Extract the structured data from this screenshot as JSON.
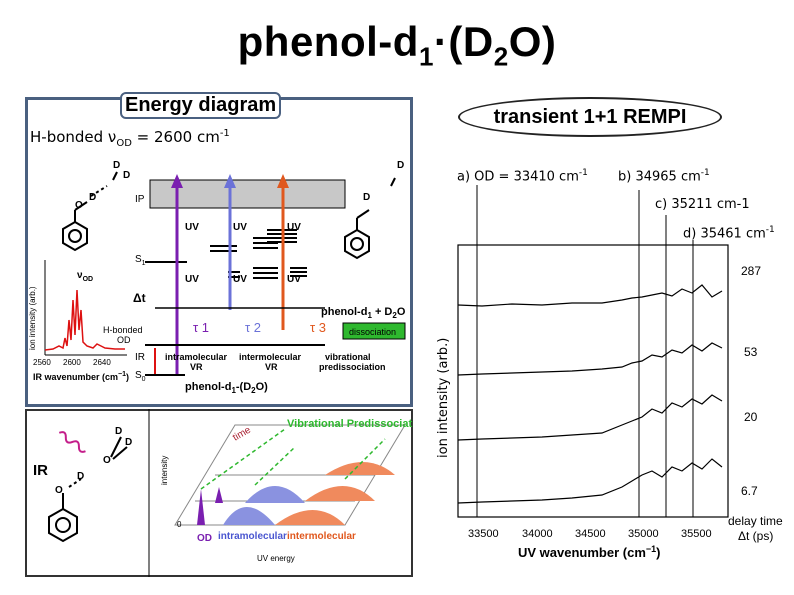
{
  "title": {
    "main": "phenol-d",
    "sub1": "1",
    "dot": "·(D",
    "sub2": "2",
    "end": "O)"
  },
  "energy_diagram": {
    "label": "Energy diagram",
    "hbonded_prefix": "H-bonded ν",
    "hbonded_sub": "OD",
    "hbonded_value": " = 2600 cm",
    "hbonded_sup": "-1",
    "levels": {
      "ip": "IP",
      "s1": "S",
      "s1_sub": "1",
      "s0": "S",
      "s0_sub": "0",
      "ir": "IR"
    },
    "uv": "UV",
    "tau1": "τ 1",
    "tau2": "τ 2",
    "tau3": "τ 3",
    "delta_t": "Δt",
    "vod": "ν",
    "vod_sub": "OD",
    "hbonded_od": "H-bonded",
    "od": "OD",
    "product": "phenol-d",
    "product_sub": "1",
    "product_end": " + D",
    "product_sub2": "2",
    "product_end2": "O",
    "dissociation": "dissociation",
    "intra_vr": "intramolecular",
    "inter_vr": "intermolecular",
    "vr": "VR",
    "vib_predis": "vibrational",
    "vib_predis2": "predissociation",
    "complex": "phenol-d",
    "complex_sub": "1",
    "complex_end": "-(D",
    "complex_sub2": "2",
    "complex_end2": "O)",
    "ir_spec_ylabel": "ion intensity (arb.)",
    "ir_spec_xlabel": "IR wavenumber (cm",
    "ir_spec_xlabel_sup": "−1",
    "ir_spec_xlabel_end": ")",
    "ir_ticks": [
      "2560",
      "2600",
      "2640"
    ],
    "d": "D",
    "o": "O"
  },
  "bottom_diagram": {
    "ir": "IR",
    "d": "D",
    "o": "O",
    "vib_predis": "Vibrational Predissociation",
    "time": "time",
    "intensity": "intensity",
    "zero": "0",
    "od": "OD",
    "intramolecular": "intramolecular",
    "intermolecular": "intermolecular",
    "uv_energy": "UV energy"
  },
  "rempi": {
    "label": "transient 1+1 REMPI",
    "spectra_labels": [
      {
        "text": "a) OD = 33410 cm",
        "sup": "-1"
      },
      {
        "text": "b) 34965 cm",
        "sup": "-1"
      },
      {
        "text": "c) 35211 cm-1",
        "sup": ""
      },
      {
        "text": "d) 35461 cm",
        "sup": "-1"
      }
    ],
    "ylabel": "ion intensity (arb.)",
    "xlabel": "UV wavenumber (cm",
    "xlabel_sup": "−1",
    "xlabel_end": ")",
    "xticks": [
      "33500",
      "34000",
      "34500",
      "35000",
      "35500"
    ],
    "delays": [
      "287",
      "53",
      "20",
      "6.7"
    ],
    "delay_title": "delay time",
    "delay_unit": "Δt (ps)"
  }
}
